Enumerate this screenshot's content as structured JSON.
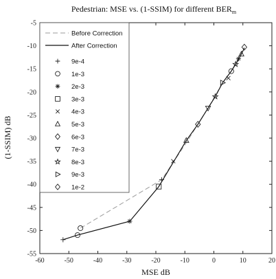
{
  "chart_data": {
    "type": "line",
    "title": "Pedestrian: MSE vs. (1-SSIM) for different BER",
    "title_subscript": "m",
    "xlabel": "MSE dB",
    "ylabel": "(1-SSIM) dB",
    "xlim": [
      -60,
      20
    ],
    "ylim": [
      -55,
      -5
    ],
    "xticks": [
      -60,
      -50,
      -40,
      -30,
      -20,
      -10,
      0,
      10,
      20
    ],
    "yticks": [
      -55,
      -50,
      -45,
      -40,
      -35,
      -30,
      -25,
      -20,
      -15,
      -10,
      -5
    ],
    "grid": false,
    "legend_position": "top-left",
    "series": [
      {
        "name": "Before Correction",
        "style": "dashed",
        "color": "#9a9a9a",
        "points": [
          [
            -46,
            -49.5
          ],
          [
            -18,
            -39
          ],
          [
            -9,
            -30.5
          ],
          [
            -5.5,
            -27
          ],
          [
            -2,
            -23.5
          ],
          [
            0.5,
            -20.8
          ],
          [
            3,
            -18
          ],
          [
            6,
            -15.5
          ],
          [
            8.5,
            -12.8
          ],
          [
            10.5,
            -10.3
          ]
        ]
      },
      {
        "name": "After Correction",
        "style": "solid",
        "color": "#111111",
        "points": [
          [
            -52,
            -52
          ],
          [
            -47,
            -51
          ],
          [
            -29,
            -48
          ],
          [
            -19,
            -40.5
          ],
          [
            -9.5,
            -30.5
          ],
          [
            -5.5,
            -27
          ],
          [
            -2,
            -23.5
          ],
          [
            0.5,
            -21
          ],
          [
            3,
            -18
          ],
          [
            6,
            -15.5
          ],
          [
            8.5,
            -13
          ],
          [
            10.5,
            -10.5
          ]
        ]
      }
    ],
    "markers": [
      {
        "name": "9e-4",
        "symbol": "plus",
        "x": -52,
        "y": -52
      },
      {
        "name": "1e-3",
        "symbol": "circle",
        "x": -47,
        "y": -51
      },
      {
        "name": "2e-3",
        "symbol": "star",
        "x": -29,
        "y": -48
      },
      {
        "name": "3e-3",
        "symbol": "square",
        "x": -19,
        "y": -40.5
      },
      {
        "name": "4e-3",
        "symbol": "x",
        "x": -14,
        "y": -35
      },
      {
        "name": "5e-3",
        "symbol": "triangle-up",
        "x": -9.5,
        "y": -30.5
      },
      {
        "name": "6e-3",
        "symbol": "diamond",
        "x": -5.5,
        "y": -27
      },
      {
        "name": "7e-3",
        "symbol": "triangle-down",
        "x": -2,
        "y": -23.5
      },
      {
        "name": "8e-3",
        "symbol": "pentagram",
        "x": 0.5,
        "y": -21
      },
      {
        "name": "9e-3",
        "symbol": "triangle-right",
        "x": 3,
        "y": -18
      },
      {
        "name": "1e-2",
        "symbol": "diamond",
        "x": 10.5,
        "y": -10.3
      }
    ],
    "extra_markers": [
      {
        "symbol": "circle",
        "x": -46,
        "y": -49.5
      },
      {
        "symbol": "plus",
        "x": -18,
        "y": -39
      },
      {
        "symbol": "x",
        "x": 5,
        "y": -17
      },
      {
        "symbol": "circle",
        "x": 6,
        "y": -15.5
      },
      {
        "symbol": "pentagram",
        "x": 7.5,
        "y": -14
      },
      {
        "symbol": "star",
        "x": 8.5,
        "y": -12.8
      },
      {
        "symbol": "triangle-up",
        "x": 9.5,
        "y": -11.8
      }
    ]
  }
}
